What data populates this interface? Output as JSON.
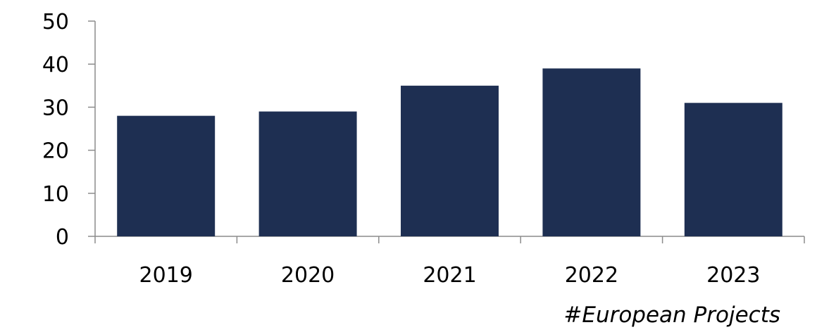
{
  "chart_data": {
    "type": "bar",
    "categories": [
      "2019",
      "2020",
      "2021",
      "2022",
      "2023"
    ],
    "values": [
      28,
      29,
      35,
      39,
      31
    ],
    "title": "",
    "xlabel": "#European Projects",
    "ylabel": "",
    "ylim": [
      0,
      50
    ],
    "yticks": [
      "0",
      "10",
      "20",
      "30",
      "40",
      "50"
    ],
    "grid": false,
    "legend": "none",
    "colors": {
      "bar": "#1e2f52",
      "axis": "#8c8c8c"
    }
  }
}
